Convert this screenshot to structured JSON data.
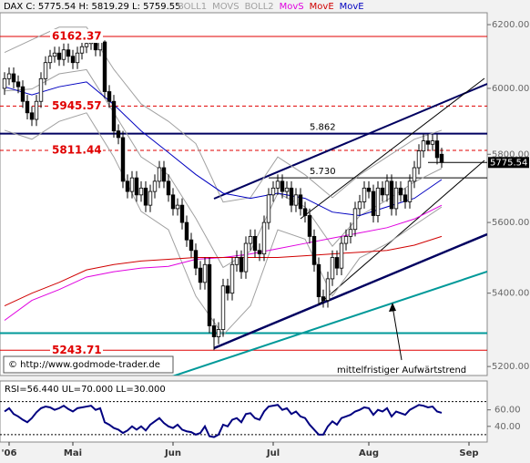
{
  "chart_data": [
    {
      "type": "candlestick",
      "header": "DAX C: 5775.54 H: 5819.29 L: 5759.55",
      "log": true,
      "ylim": [
        5176,
        6238
      ],
      "yticks": [
        {
          "value": 6200,
          "label": "6200.00"
        },
        {
          "value": 6000,
          "label": "6000.00"
        },
        {
          "value": 5800,
          "label": "5800.00"
        },
        {
          "value": 5600,
          "label": "5600.00"
        },
        {
          "value": 5400,
          "label": "5400.00"
        },
        {
          "value": 5200,
          "label": "5200.00"
        }
      ],
      "categories": [
        null,
        "'06",
        null,
        null,
        null,
        null,
        null,
        null,
        null,
        null,
        null,
        null,
        null,
        null,
        null,
        "Mai",
        null,
        null,
        null,
        null,
        null,
        null,
        null,
        null,
        null,
        null,
        null,
        null,
        null,
        null,
        null,
        null,
        null,
        null,
        null,
        null,
        null,
        "Jun",
        null,
        null,
        null,
        null,
        null,
        null,
        null,
        null,
        null,
        null,
        null,
        null,
        null,
        null,
        null,
        null,
        null,
        null,
        null,
        null,
        null,
        "Jul",
        null,
        null,
        null,
        null,
        null,
        null,
        null,
        null,
        null,
        null,
        null,
        null,
        null,
        null,
        null,
        null,
        null,
        null,
        null,
        null,
        "Aug",
        null,
        null,
        null,
        null,
        null,
        null,
        null,
        null,
        null,
        null,
        null,
        null,
        null,
        null,
        null,
        null,
        null,
        null,
        null,
        null,
        null,
        "Sep",
        null,
        null,
        null
      ],
      "open": [
        6000,
        6030,
        6045,
        6020,
        6005,
        5960,
        5925,
        5905,
        5960,
        6030,
        6080,
        6100,
        6110,
        6090,
        6120,
        6100,
        6080,
        6110,
        6130,
        6140,
        6150,
        6120,
        6145,
        5990,
        5960,
        5870,
        5850,
        5720,
        5690,
        5730,
        5680,
        5700,
        5650,
        5690,
        5720,
        5760,
        5720,
        5680,
        5640,
        5650,
        5600,
        5550,
        5520,
        5470,
        5430,
        5480,
        5310,
        5280,
        5300,
        5420,
        5400,
        5480,
        5500,
        5460,
        5540,
        5560,
        5520,
        5510,
        5600,
        5680,
        5700,
        5720,
        5690,
        5700,
        5650,
        5680,
        5640,
        5620,
        5560,
        5480,
        5390,
        5380,
        5440,
        5500,
        5470,
        5540,
        5560,
        5580,
        5640,
        5660,
        5700,
        5690,
        5620,
        5700,
        5680,
        5720,
        5640,
        5700,
        5680,
        5660,
        5720,
        5760,
        5810,
        5840,
        5830,
        5840,
        5800,
        null,
        null,
        null,
        null,
        null,
        null,
        null,
        null,
        null
      ],
      "high": [
        6050,
        6065,
        6065,
        6040,
        6025,
        5980,
        5945,
        5980,
        6050,
        6100,
        6120,
        6130,
        6130,
        6140,
        6140,
        6120,
        6130,
        6148,
        6155,
        6158,
        6160,
        6162.37,
        6150,
        6010,
        5980,
        5890,
        5870,
        5740,
        5750,
        5750,
        5720,
        5720,
        5710,
        5740,
        5780,
        5780,
        5740,
        5700,
        5670,
        5670,
        5620,
        5570,
        5540,
        5490,
        5500,
        5500,
        5330,
        5320,
        5440,
        5440,
        5500,
        5520,
        5520,
        5560,
        5580,
        5580,
        5540,
        5620,
        5700,
        5720,
        5740,
        5740,
        5720,
        5720,
        5700,
        5700,
        5660,
        5640,
        5580,
        5500,
        5410,
        5460,
        5520,
        5520,
        5560,
        5580,
        5600,
        5660,
        5680,
        5720,
        5720,
        5710,
        5720,
        5720,
        5740,
        5740,
        5720,
        5720,
        5700,
        5740,
        5780,
        5830,
        5860,
        5860,
        5860,
        5860,
        5819.29,
        null,
        null,
        null,
        null,
        null,
        null,
        null,
        null,
        null
      ],
      "low": [
        5980,
        6010,
        6000,
        5985,
        5940,
        5905,
        5885,
        5885,
        5940,
        6010,
        6060,
        6080,
        6070,
        6070,
        6080,
        6060,
        6060,
        6090,
        6110,
        6120,
        6100,
        6100,
        5970,
        5940,
        5850,
        5830,
        5700,
        5670,
        5670,
        5660,
        5660,
        5630,
        5630,
        5670,
        5700,
        5700,
        5660,
        5620,
        5620,
        5580,
        5530,
        5500,
        5450,
        5410,
        5410,
        5290,
        5243.71,
        5260,
        5280,
        5380,
        5380,
        5460,
        5440,
        5440,
        5520,
        5500,
        5490,
        5490,
        5580,
        5660,
        5680,
        5670,
        5670,
        5630,
        5630,
        5620,
        5600,
        5540,
        5460,
        5370,
        5360,
        5360,
        5420,
        5450,
        5450,
        5520,
        5540,
        5560,
        5620,
        5640,
        5670,
        5600,
        5600,
        5660,
        5660,
        5620,
        5620,
        5660,
        5640,
        5640,
        5700,
        5740,
        5790,
        5810,
        5810,
        5770,
        5759.55,
        null,
        null,
        null,
        null,
        null,
        null,
        null,
        null,
        null
      ],
      "close": [
        6030,
        6045,
        6020,
        6005,
        5960,
        5925,
        5905,
        5960,
        6030,
        6080,
        6100,
        6110,
        6090,
        6120,
        6100,
        6080,
        6110,
        6130,
        6140,
        6150,
        6120,
        6145,
        5990,
        5960,
        5870,
        5850,
        5720,
        5690,
        5730,
        5680,
        5700,
        5650,
        5690,
        5720,
        5760,
        5720,
        5680,
        5640,
        5650,
        5600,
        5550,
        5520,
        5470,
        5430,
        5480,
        5310,
        5280,
        5300,
        5420,
        5400,
        5480,
        5500,
        5460,
        5540,
        5560,
        5520,
        5510,
        5600,
        5680,
        5700,
        5720,
        5690,
        5700,
        5650,
        5680,
        5640,
        5620,
        5560,
        5480,
        5390,
        5380,
        5440,
        5500,
        5470,
        5540,
        5560,
        5580,
        5640,
        5660,
        5700,
        5690,
        5620,
        5700,
        5680,
        5720,
        5640,
        5700,
        5680,
        5660,
        5720,
        5760,
        5810,
        5840,
        5830,
        5840,
        5790,
        5775.54,
        null,
        null,
        null,
        null,
        null,
        null,
        null,
        null,
        null
      ],
      "series": [
        {
          "name": "BOLL1",
          "color": "#a0a0a0",
          "x": [
            0,
            6,
            12,
            18,
            24,
            30,
            36,
            42,
            48,
            54,
            60,
            66,
            72,
            78,
            84,
            90,
            96
          ],
          "values": [
            6112,
            6152,
            6192,
            6192,
            6059,
            5952,
            5899,
            5832,
            5659,
            5672,
            5792,
            5739,
            5672,
            5739,
            5792,
            5845,
            5872
          ]
        },
        {
          "name": "MOVS",
          "color": "#a0a0a0",
          "x": [
            0,
            6,
            12,
            18,
            24,
            30,
            36,
            42,
            48,
            54,
            60,
            66,
            72,
            78,
            84,
            90,
            96
          ],
          "values": [
            5992,
            5998,
            6045,
            6058,
            5925,
            5792,
            5739,
            5612,
            5472,
            5518,
            5685,
            5645,
            5532,
            5619,
            5665,
            5718,
            5758
          ]
        },
        {
          "name": "BOLL2",
          "color": "#a0a0a0",
          "x": [
            0,
            6,
            12,
            18,
            24,
            30,
            36,
            42,
            48,
            54,
            60,
            66,
            72,
            78,
            84,
            90,
            96
          ],
          "values": [
            5872,
            5845,
            5899,
            5925,
            5792,
            5632,
            5579,
            5392,
            5285,
            5365,
            5579,
            5552,
            5392,
            5499,
            5539,
            5592,
            5645
          ]
        },
        {
          "name": "MovS",
          "color": "#e000e0",
          "x": [
            0,
            6,
            12,
            18,
            24,
            30,
            36,
            42,
            48,
            54,
            60,
            66,
            72,
            78,
            84,
            90,
            96
          ],
          "values": [
            5325,
            5380,
            5410,
            5445,
            5460,
            5470,
            5475,
            5495,
            5500,
            5510,
            5525,
            5540,
            5555,
            5570,
            5585,
            5610,
            5650
          ]
        },
        {
          "name": "MovE",
          "color": "#d00000",
          "x": [
            0,
            6,
            12,
            18,
            24,
            30,
            36,
            42,
            48,
            54,
            60,
            66,
            72,
            78,
            84,
            90,
            96
          ],
          "values": [
            5365,
            5400,
            5430,
            5465,
            5480,
            5490,
            5495,
            5500,
            5500,
            5500,
            5500,
            5505,
            5510,
            5515,
            5520,
            5535,
            5560
          ]
        },
        {
          "name": "MovE",
          "color": "#0000c0",
          "x": [
            0,
            6,
            12,
            18,
            24,
            30,
            36,
            42,
            48,
            54,
            60,
            66,
            72,
            78,
            84,
            90,
            96
          ],
          "values": [
            6005,
            5980,
            6005,
            6020,
            5950,
            5870,
            5805,
            5740,
            5685,
            5670,
            5685,
            5670,
            5630,
            5620,
            5645,
            5670,
            5725
          ]
        }
      ],
      "levels": [
        {
          "value": 6162.37,
          "color": "#e00000",
          "dash": false,
          "width": 1,
          "bold_label": true
        },
        {
          "value": 5945.57,
          "color": "#e00000",
          "dash": true,
          "width": 1,
          "bold_label": true
        },
        {
          "value": 5862,
          "label": "5.862",
          "color": "#000060",
          "dash": false,
          "width": 2
        },
        {
          "value": 5811.44,
          "color": "#e00000",
          "dash": true,
          "width": 1,
          "bold_label": true
        },
        {
          "value": 5730,
          "label": "5.730",
          "color": "#000000",
          "dash": false,
          "width": 1
        },
        {
          "value": 5290,
          "color": "#009999",
          "dash": false,
          "width": 2
        },
        {
          "value": 5243.71,
          "color": "#e00000",
          "dash": false,
          "width": 1,
          "bold_label": true
        }
      ],
      "annotations": {
        "copyright": "© http://www.godmode-trader.de",
        "trend": "mittelfristiger Aufwärtstrend"
      }
    },
    {
      "type": "line",
      "title": "RSI=56.440 UL=70.000 LL=30.000",
      "ylim": [
        21,
        95
      ],
      "yticks": [
        {
          "value": 60,
          "label": "60.00"
        },
        {
          "value": 40,
          "label": "40.00"
        }
      ],
      "levels": [
        70,
        30
      ],
      "series": [
        {
          "name": "RSI",
          "color": "#000080",
          "values": [
            58,
            62,
            55,
            52,
            48,
            45,
            50,
            57,
            62,
            64,
            63,
            60,
            62,
            65,
            61,
            58,
            62,
            63,
            64,
            65,
            60,
            62,
            45,
            42,
            38,
            36,
            32,
            35,
            40,
            36,
            40,
            35,
            42,
            46,
            50,
            44,
            40,
            38,
            42,
            36,
            34,
            33,
            30,
            32,
            40,
            28,
            27,
            30,
            42,
            40,
            48,
            50,
            45,
            55,
            56,
            50,
            48,
            58,
            64,
            65,
            66,
            60,
            62,
            55,
            58,
            52,
            50,
            42,
            36,
            30,
            30,
            40,
            46,
            42,
            50,
            52,
            54,
            58,
            60,
            63,
            62,
            54,
            60,
            58,
            62,
            52,
            58,
            56,
            54,
            60,
            63,
            66,
            65,
            63,
            64,
            58,
            56.44,
            null,
            null,
            null,
            null,
            null,
            null,
            null,
            null,
            null
          ]
        }
      ]
    }
  ]
}
